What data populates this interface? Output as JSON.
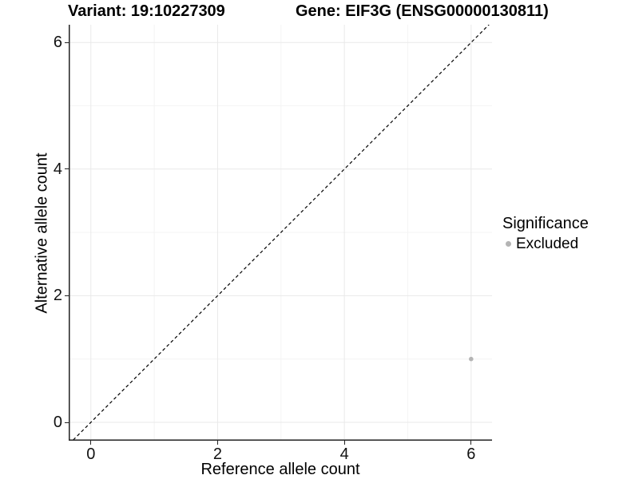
{
  "figure": {
    "title_left": "Variant: 19:10227309",
    "title_right": "Gene: EIF3G (ENSG00000130811)"
  },
  "chart_data": {
    "type": "scatter",
    "title": "Variant: 19:10227309 — Gene: EIF3G (ENSG00000130811)",
    "xlabel": "Reference allele count",
    "ylabel": "Alternative allele count",
    "xlim": [
      -0.35,
      6.33
    ],
    "ylim": [
      -0.29,
      6.28
    ],
    "x_major_ticks": [
      0,
      2,
      4,
      6
    ],
    "y_major_ticks": [
      0,
      2,
      4,
      6
    ],
    "x_minor_ticks": [
      1,
      3,
      5
    ],
    "y_minor_ticks": [
      1,
      3,
      5
    ],
    "grid": "major and minor gridlines, light grey on white",
    "legend_position": "right, vertically centered",
    "series": [
      {
        "name": "Excluded",
        "color": "#b4b4b4",
        "points": [
          [
            6,
            1
          ]
        ]
      }
    ],
    "reference_line": {
      "kind": "identity y=x",
      "style": "dashed",
      "color": "#000000"
    }
  },
  "legend": {
    "title": "Significance",
    "items": [
      {
        "label": "Excluded",
        "color": "#b4b4b4"
      }
    ]
  },
  "style": {
    "background": "#ffffff",
    "axis_line_color": "#222222",
    "tick_color": "#222222",
    "grid_major_color": "#e9e9e9",
    "grid_minor_color": "#f4f4f4",
    "point_color": "#b4b4b4",
    "text_color": "#000000"
  }
}
